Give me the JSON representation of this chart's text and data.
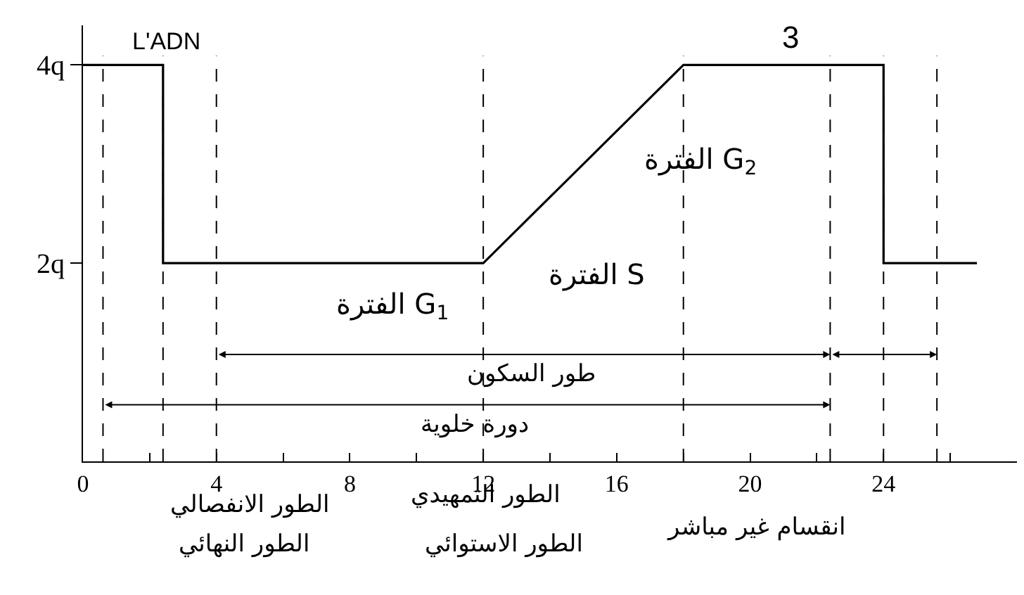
{
  "chart_data": {
    "type": "line",
    "ylabel": "L'ADN",
    "x": [
      0,
      2.4,
      2.4,
      12,
      18,
      24,
      24,
      26.8
    ],
    "series": [
      {
        "color": "#000000",
        "values": [
          4,
          4,
          2,
          2,
          4,
          4,
          2,
          2
        ]
      }
    ],
    "xlim": [
      0,
      28
    ],
    "ylim": [
      0,
      4.4
    ],
    "xticks": [
      0,
      {
        "value": 2,
        "label": null
      },
      4,
      {
        "value": 6,
        "label": null
      },
      8,
      {
        "value": 10,
        "label": null
      },
      12,
      {
        "value": 14,
        "label": null
      },
      16,
      {
        "value": 18,
        "label": null
      },
      20,
      {
        "value": 22,
        "label": null
      },
      24,
      {
        "value": 26,
        "label": null
      }
    ],
    "yticks": [
      {
        "value": 2,
        "label": "2q"
      },
      {
        "value": 4,
        "label": "4q"
      }
    ],
    "marker": "none",
    "line_style": "solid",
    "ref_lines": [
      {
        "axis": "x",
        "value": 0.6,
        "line_style": "dashed"
      },
      {
        "axis": "x",
        "value": 2.4,
        "line_style": "dashed"
      },
      {
        "axis": "x",
        "value": 4,
        "line_style": "dashed"
      },
      {
        "axis": "x",
        "value": 12,
        "line_style": "dashed"
      },
      {
        "axis": "x",
        "value": 18,
        "line_style": "dashed"
      },
      {
        "axis": "x",
        "value": 22.4,
        "line_style": "dashed"
      },
      {
        "axis": "x",
        "value": 24,
        "line_style": "dashed"
      },
      {
        "axis": "x",
        "value": 25.6,
        "line_style": "dashed"
      }
    ],
    "annotations": [
      "الفترة G$_{1}$",
      "الفترة S",
      "الفترة G$_{2}$",
      "3",
      "طور السكون",
      "دورة خلوية",
      "الطور الانفصالي",
      "الطور النهائي",
      "الطور التمهيدي",
      "الطور الاستوائي",
      "انقسام غير مباشر"
    ]
  }
}
